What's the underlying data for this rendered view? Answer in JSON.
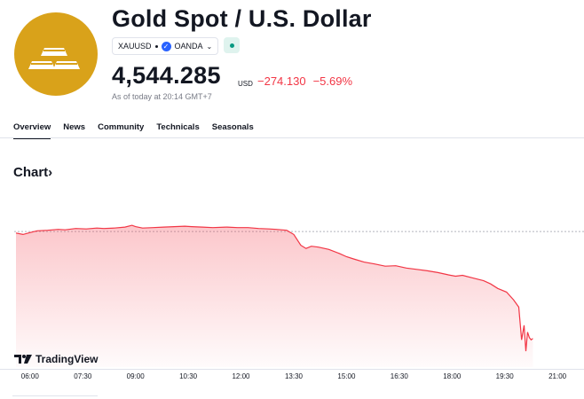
{
  "header": {
    "title": "Gold Spot / U.S. Dollar",
    "symbol": "XAUUSD",
    "exchange": "OANDA",
    "logo_icon": "gold-bars-icon",
    "accent_color": "#d9a21a"
  },
  "quote": {
    "price": "4,544.285",
    "currency": "USD",
    "change": "−274.130",
    "change_percent": "−5.69%",
    "as_of": "As of today at 20:14 GMT+7",
    "negative_color": "#f23645"
  },
  "tabs": [
    {
      "label": "Overview",
      "active": true
    },
    {
      "label": "News",
      "active": false
    },
    {
      "label": "Community",
      "active": false
    },
    {
      "label": "Technicals",
      "active": false
    },
    {
      "label": "Seasonals",
      "active": false
    }
  ],
  "chart_section": {
    "title": "Chart",
    "title_chevron": "›"
  },
  "branding": {
    "tradingview": "TradingView"
  },
  "chart_data": {
    "type": "area",
    "title": "",
    "xlabel": "",
    "ylabel": "",
    "x_ticks": [
      "06:00",
      "07:30",
      "09:00",
      "10:30",
      "12:00",
      "13:30",
      "15:00",
      "16:30",
      "18:00",
      "19:30",
      "21:00"
    ],
    "x_range_hours": [
      5.55,
      21.3
    ],
    "y_range": [
      4520,
      4840
    ],
    "previous_close": 4818.415,
    "series": [
      {
        "name": "XAUUSD",
        "color": "#f23645",
        "points": [
          [
            5.6,
            4815
          ],
          [
            5.8,
            4812
          ],
          [
            6.0,
            4816
          ],
          [
            6.2,
            4820
          ],
          [
            6.5,
            4821
          ],
          [
            6.8,
            4823
          ],
          [
            7.0,
            4822
          ],
          [
            7.3,
            4825
          ],
          [
            7.6,
            4824
          ],
          [
            7.9,
            4826
          ],
          [
            8.1,
            4825
          ],
          [
            8.4,
            4826
          ],
          [
            8.7,
            4828
          ],
          [
            8.9,
            4832
          ],
          [
            9.0,
            4829
          ],
          [
            9.2,
            4826
          ],
          [
            9.5,
            4827
          ],
          [
            9.8,
            4828
          ],
          [
            10.1,
            4829
          ],
          [
            10.4,
            4830
          ],
          [
            10.6,
            4829
          ],
          [
            10.9,
            4828
          ],
          [
            11.2,
            4827
          ],
          [
            11.6,
            4828
          ],
          [
            11.9,
            4827
          ],
          [
            12.2,
            4827
          ],
          [
            12.5,
            4825
          ],
          [
            12.8,
            4824
          ],
          [
            13.0,
            4823
          ],
          [
            13.3,
            4821
          ],
          [
            13.5,
            4812
          ],
          [
            13.7,
            4788
          ],
          [
            13.85,
            4781
          ],
          [
            14.0,
            4786
          ],
          [
            14.2,
            4784
          ],
          [
            14.5,
            4779
          ],
          [
            14.8,
            4770
          ],
          [
            15.0,
            4763
          ],
          [
            15.2,
            4758
          ],
          [
            15.5,
            4751
          ],
          [
            15.8,
            4747
          ],
          [
            16.1,
            4742
          ],
          [
            16.4,
            4743
          ],
          [
            16.7,
            4738
          ],
          [
            17.0,
            4735
          ],
          [
            17.3,
            4732
          ],
          [
            17.6,
            4728
          ],
          [
            17.9,
            4723
          ],
          [
            18.1,
            4720
          ],
          [
            18.3,
            4722
          ],
          [
            18.6,
            4716
          ],
          [
            18.9,
            4710
          ],
          [
            19.1,
            4703
          ],
          [
            19.3,
            4693
          ],
          [
            19.55,
            4685
          ],
          [
            19.75,
            4668
          ],
          [
            19.9,
            4652
          ],
          [
            19.98,
            4580
          ],
          [
            20.05,
            4612
          ],
          [
            20.1,
            4555
          ],
          [
            20.15,
            4597
          ],
          [
            20.2,
            4585
          ],
          [
            20.25,
            4580
          ],
          [
            20.3,
            4583
          ]
        ]
      }
    ]
  }
}
